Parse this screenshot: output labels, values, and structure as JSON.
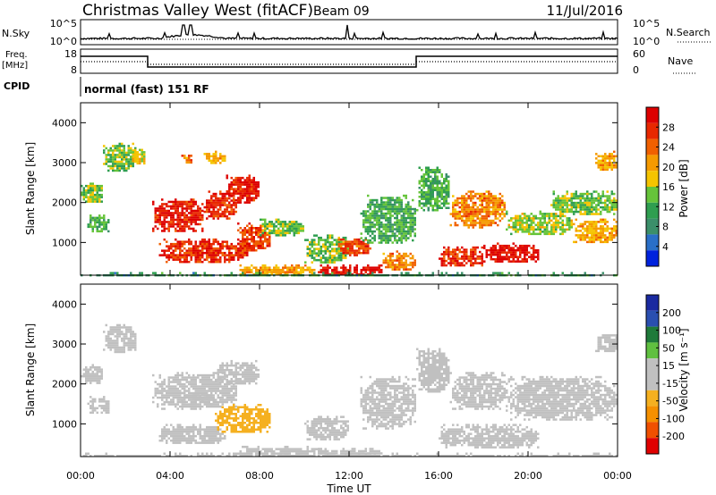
{
  "header": {
    "station": "Christmas Valley West (fitACF)",
    "beam": "Beam 09",
    "date": "11/Jul/2016"
  },
  "noise_panel": {
    "left_label": "N.Sky",
    "right_label": "N.Search",
    "left_ticks": [
      "10^5",
      "10^0"
    ],
    "right_ticks": [
      "10^5",
      "10^0"
    ]
  },
  "freq_panel": {
    "left_label_1": "Freq.",
    "left_label_2": "[MHz]",
    "left_ticks": [
      "18",
      "8"
    ],
    "right_label": "Nave",
    "right_ticks": [
      "60",
      "0"
    ]
  },
  "cpid": {
    "label": "CPID",
    "value": "normal (fast) 151 RF"
  },
  "colors": {
    "power": [
      "#0022dd",
      "#2a6fc8",
      "#3b8f6a",
      "#2f9e50",
      "#66c43a",
      "#f5c400",
      "#f59a00",
      "#f06000",
      "#e82800",
      "#dd0000"
    ],
    "velocity": [
      "#e00000",
      "#f05000",
      "#f59000",
      "#f5b020",
      "#c0c0c0",
      "#c0c0c0",
      "#60c040",
      "#1f7a3a",
      "#2a4fb0",
      "#1a2aa0"
    ]
  },
  "chart_data": [
    {
      "type": "heatmap",
      "name": "power",
      "ylabel": "Slant Range [km]",
      "yticks": [
        "1000",
        "2000",
        "3000",
        "4000"
      ],
      "ylim": [
        180,
        4500
      ],
      "xlim": [
        0,
        24
      ],
      "colorbar": {
        "label": "Power [dB]",
        "ticks": [
          "4",
          "8",
          "12",
          "16",
          "20",
          "24",
          "28"
        ],
        "range": [
          0,
          32
        ]
      },
      "regions": [
        {
          "t0": 0.0,
          "t1": 1.0,
          "r0": 2000,
          "r1": 2500,
          "v": 14
        },
        {
          "t0": 0.3,
          "t1": 1.3,
          "r0": 1300,
          "r1": 1700,
          "v": 12
        },
        {
          "t0": 1.0,
          "t1": 2.5,
          "r0": 2800,
          "r1": 3500,
          "v": 14
        },
        {
          "t0": 2.2,
          "t1": 2.9,
          "r0": 3000,
          "r1": 3400,
          "v": 18
        },
        {
          "t0": 3.2,
          "t1": 5.5,
          "r0": 1300,
          "r1": 2100,
          "v": 29
        },
        {
          "t0": 5.5,
          "t1": 7.0,
          "r0": 1600,
          "r1": 2300,
          "v": 28
        },
        {
          "t0": 6.5,
          "t1": 8.0,
          "r0": 2000,
          "r1": 2700,
          "v": 29
        },
        {
          "t0": 3.5,
          "t1": 7.5,
          "r0": 500,
          "r1": 1100,
          "v": 28
        },
        {
          "t0": 7.0,
          "t1": 8.5,
          "r0": 800,
          "r1": 1500,
          "v": 26
        },
        {
          "t0": 8.0,
          "t1": 10.0,
          "r0": 1200,
          "r1": 1600,
          "v": 14
        },
        {
          "t0": 4.5,
          "t1": 5.0,
          "r0": 3000,
          "r1": 3200,
          "v": 22
        },
        {
          "t0": 5.5,
          "t1": 6.5,
          "r0": 3000,
          "r1": 3300,
          "v": 20
        },
        {
          "t0": 7.0,
          "t1": 10.5,
          "r0": 200,
          "r1": 450,
          "v": 20
        },
        {
          "t0": 10.5,
          "t1": 13.5,
          "r0": 200,
          "r1": 450,
          "v": 30
        },
        {
          "t0": 10.0,
          "t1": 12.0,
          "r0": 500,
          "r1": 1200,
          "v": 14
        },
        {
          "t0": 11.5,
          "t1": 13.0,
          "r0": 700,
          "r1": 1100,
          "v": 26
        },
        {
          "t0": 12.5,
          "t1": 15.0,
          "r0": 1000,
          "r1": 2200,
          "v": 12
        },
        {
          "t0": 13.5,
          "t1": 15.0,
          "r0": 300,
          "r1": 800,
          "v": 22
        },
        {
          "t0": 15.0,
          "t1": 16.5,
          "r0": 1800,
          "r1": 2900,
          "v": 12
        },
        {
          "t0": 16.0,
          "t1": 18.0,
          "r0": 400,
          "r1": 900,
          "v": 28
        },
        {
          "t0": 16.5,
          "t1": 19.0,
          "r0": 1400,
          "r1": 2300,
          "v": 22
        },
        {
          "t0": 18.0,
          "t1": 20.5,
          "r0": 500,
          "r1": 1000,
          "v": 30
        },
        {
          "t0": 19.0,
          "t1": 22.0,
          "r0": 1200,
          "r1": 1800,
          "v": 16
        },
        {
          "t0": 21.0,
          "t1": 24.0,
          "r0": 1700,
          "r1": 2300,
          "v": 14
        },
        {
          "t0": 22.0,
          "t1": 24.0,
          "r0": 1000,
          "r1": 1600,
          "v": 20
        },
        {
          "t0": 23.0,
          "t1": 24.0,
          "r0": 2800,
          "r1": 3300,
          "v": 20
        },
        {
          "t0": 0.0,
          "t1": 24.0,
          "r0": 180,
          "r1": 260,
          "v": 10
        }
      ]
    },
    {
      "type": "heatmap",
      "name": "velocity",
      "ylabel": "Slant Range [km]",
      "yticks": [
        "1000",
        "2000",
        "3000",
        "4000"
      ],
      "ylim": [
        180,
        4500
      ],
      "xlim": [
        0,
        24
      ],
      "xticks": [
        "00:00",
        "04:00",
        "08:00",
        "12:00",
        "16:00",
        "20:00",
        "00:00"
      ],
      "xlabel": "Time UT",
      "colorbar": {
        "label": "Velocity [m s⁻¹]",
        "ticks": [
          "200",
          "100",
          "50",
          "15",
          "-15",
          "-50",
          "-100",
          "-200"
        ],
        "range": [
          -250,
          250
        ]
      },
      "regions": [
        {
          "t0": 0.0,
          "t1": 1.0,
          "r0": 2000,
          "r1": 2500,
          "v": 0
        },
        {
          "t0": 0.3,
          "t1": 1.3,
          "r0": 1300,
          "r1": 1700,
          "v": 0
        },
        {
          "t0": 1.0,
          "t1": 2.5,
          "r0": 2800,
          "r1": 3500,
          "v": 5
        },
        {
          "t0": 3.2,
          "t1": 7.0,
          "r0": 1400,
          "r1": 2300,
          "v": 0
        },
        {
          "t0": 6.0,
          "t1": 8.0,
          "r0": 2000,
          "r1": 2600,
          "v": 0
        },
        {
          "t0": 4.5,
          "t1": 6.0,
          "r0": 1500,
          "r1": 1800,
          "v": 30
        },
        {
          "t0": 3.5,
          "t1": 6.5,
          "r0": 500,
          "r1": 1000,
          "v": -40
        },
        {
          "t0": 6.0,
          "t1": 8.5,
          "r0": 800,
          "r1": 1500,
          "v": -70
        },
        {
          "t0": 7.0,
          "t1": 11.0,
          "r0": 200,
          "r1": 450,
          "v": 40
        },
        {
          "t0": 10.5,
          "t1": 13.5,
          "r0": 200,
          "r1": 400,
          "v": 25
        },
        {
          "t0": 10.0,
          "t1": 12.0,
          "r0": 600,
          "r1": 1200,
          "v": 0
        },
        {
          "t0": 12.5,
          "t1": 15.0,
          "r0": 900,
          "r1": 2200,
          "v": 0
        },
        {
          "t0": 15.0,
          "t1": 16.5,
          "r0": 1800,
          "r1": 2900,
          "v": 0
        },
        {
          "t0": 16.0,
          "t1": 20.5,
          "r0": 400,
          "r1": 1000,
          "v": 0
        },
        {
          "t0": 16.5,
          "t1": 19.0,
          "r0": 1400,
          "r1": 2300,
          "v": 0
        },
        {
          "t0": 19.0,
          "t1": 24.0,
          "r0": 1100,
          "r1": 2200,
          "v": 0
        },
        {
          "t0": 23.0,
          "t1": 24.0,
          "r0": 2800,
          "r1": 3300,
          "v": -40
        },
        {
          "t0": 0.0,
          "t1": 24.0,
          "r0": 180,
          "r1": 280,
          "v": 40
        }
      ]
    }
  ]
}
